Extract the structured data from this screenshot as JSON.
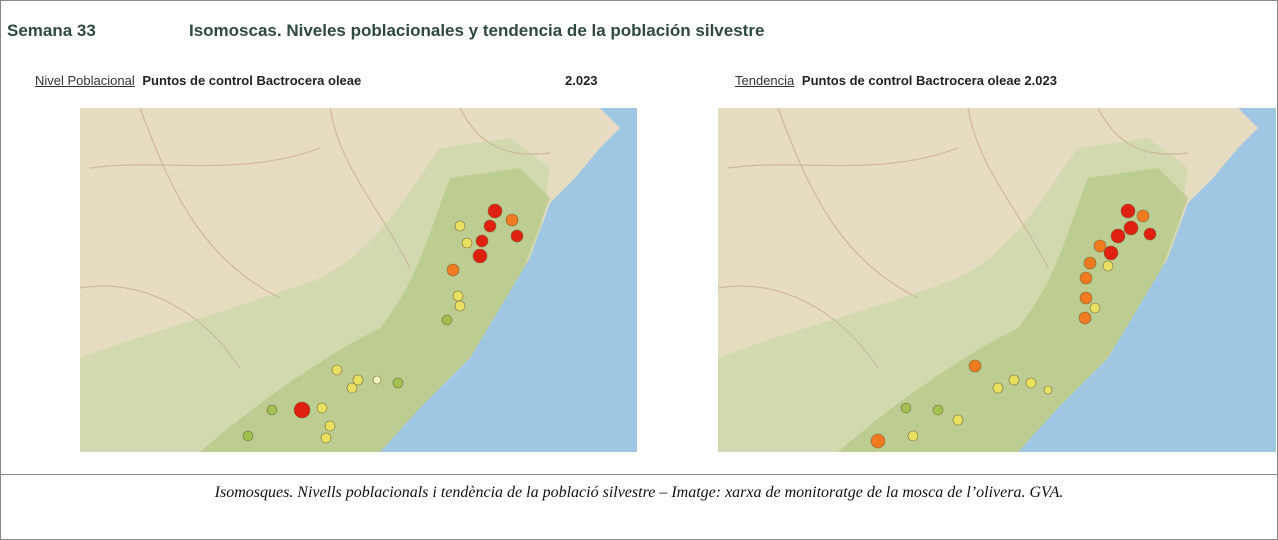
{
  "header": {
    "week": "Semana 33",
    "title": "Isomoscas. Niveles poblacionales y tendencia de la población silvestre"
  },
  "panels": [
    {
      "link": "Nivel Poblacional",
      "label": "Puntos de control Bactrocera oleae",
      "year": "2.023"
    },
    {
      "link": "Tendencia",
      "label": "Puntos de control Bactrocera oleae 2.023"
    }
  ],
  "caption": "Isomosques. Nivells poblacionals i tendència de la població silvestre – Imatge: xarxa de monitoratge de la mosca de l’olivera. GVA."
}
